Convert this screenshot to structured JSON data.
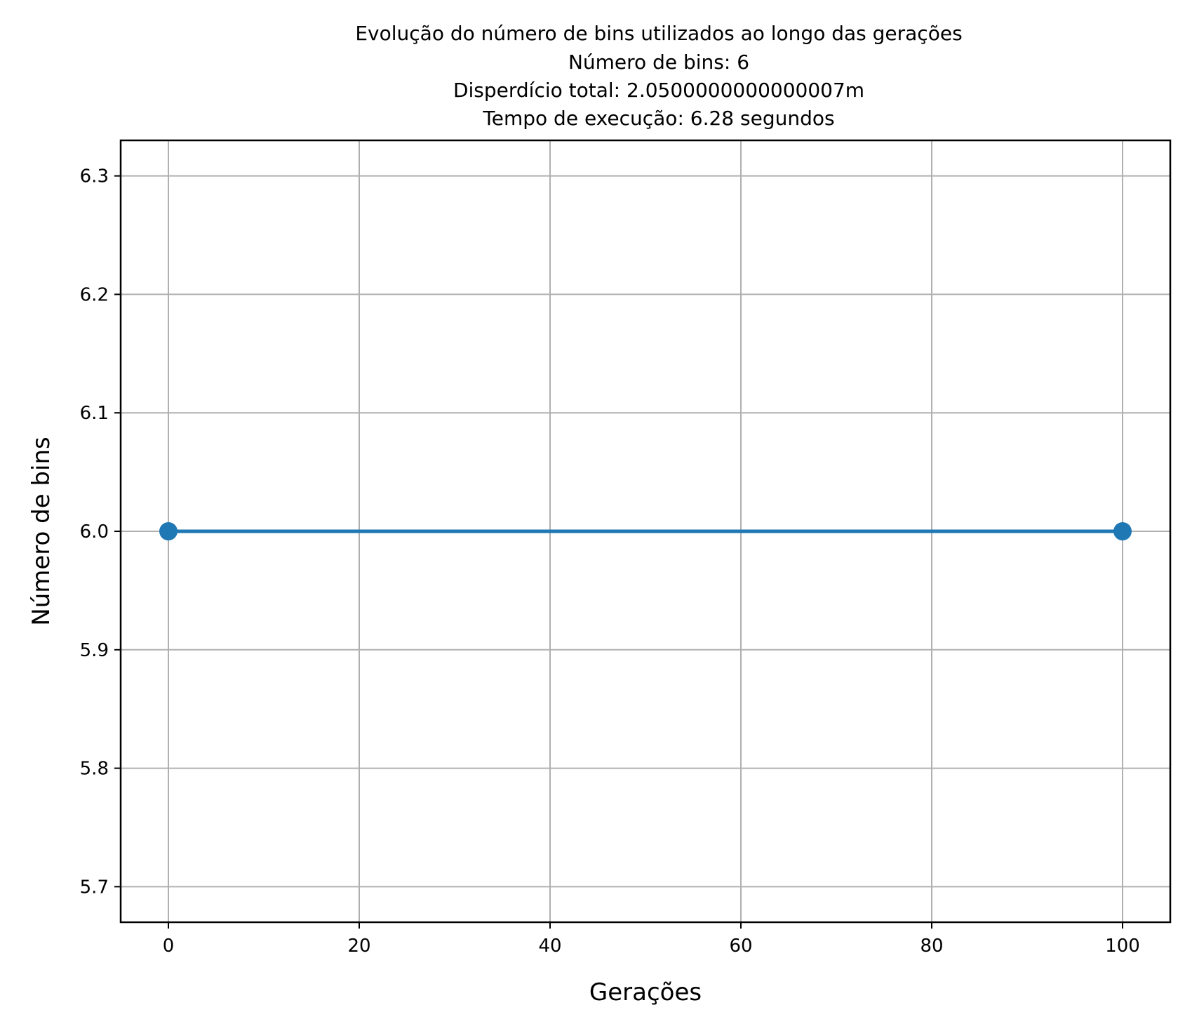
{
  "chart_data": {
    "type": "line",
    "title_lines": [
      "Evolução do número de bins utilizados ao longo das gerações",
      "Número de bins: 6",
      "Disperdício total: 2.0500000000000007m",
      "Tempo de execução: 6.28 segundos"
    ],
    "xlabel": "Gerações",
    "ylabel": "Número de bins",
    "x": [
      0,
      100
    ],
    "series": [
      {
        "values": [
          6,
          6
        ],
        "color": "#1f77b4",
        "marker": "circle"
      }
    ],
    "xlim": [
      -5,
      105
    ],
    "ylim": [
      5.67,
      6.33
    ],
    "xticks": [
      0,
      20,
      40,
      60,
      80,
      100
    ],
    "xtick_labels": [
      "0",
      "20",
      "40",
      "60",
      "80",
      "100"
    ],
    "yticks": [
      5.7,
      5.8,
      5.9,
      6.0,
      6.1,
      6.2,
      6.3
    ],
    "ytick_labels": [
      "5.7",
      "5.8",
      "5.9",
      "6.0",
      "6.1",
      "6.2",
      "6.3"
    ],
    "grid": true
  }
}
